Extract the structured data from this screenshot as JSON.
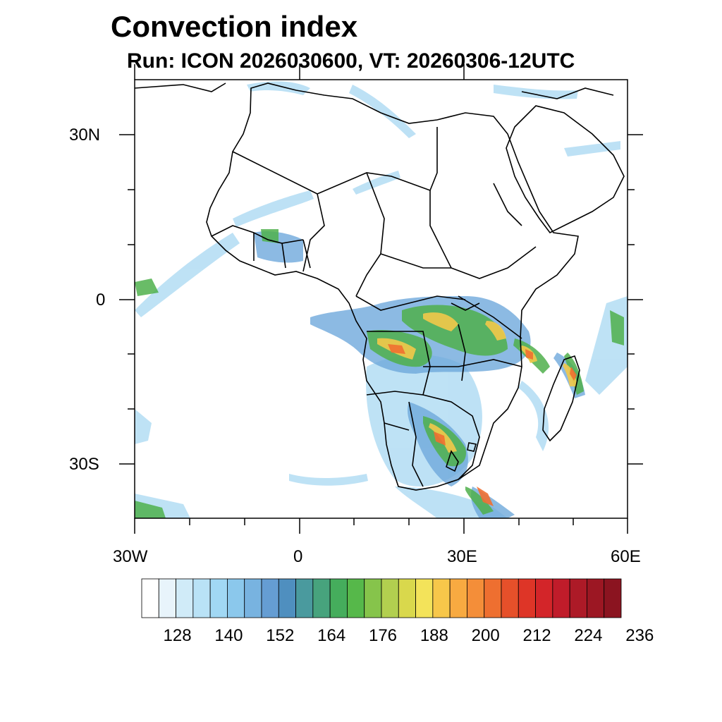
{
  "title": "Convection index",
  "subtitle": "Run: ICON 2026030600,  VT: 20260306-12UTC",
  "axes": {
    "x_ticks": [
      "30W",
      "0",
      "30E",
      "60E"
    ],
    "y_ticks": [
      "30N",
      "0",
      "30S"
    ]
  },
  "colorbar": {
    "labels": [
      "128",
      "140",
      "152",
      "164",
      "176",
      "188",
      "200",
      "212",
      "224",
      "236"
    ],
    "colors": [
      "#ffffff",
      "#e8f4fb",
      "#d0ebf8",
      "#b9e2f6",
      "#a1d8f4",
      "#8bc8ec",
      "#78b3e0",
      "#659dd3",
      "#4f8fbf",
      "#4a9a9e",
      "#47a37d",
      "#45ad5c",
      "#56b84a",
      "#86c44b",
      "#b2cf4f",
      "#d9d84c",
      "#f3e35a",
      "#f7c74a",
      "#f8aa41",
      "#f48e39",
      "#ee6f30",
      "#e6502a",
      "#de3527",
      "#d32529",
      "#c01c2a",
      "#ad1a27",
      "#9c1723",
      "#8b1420"
    ]
  }
}
